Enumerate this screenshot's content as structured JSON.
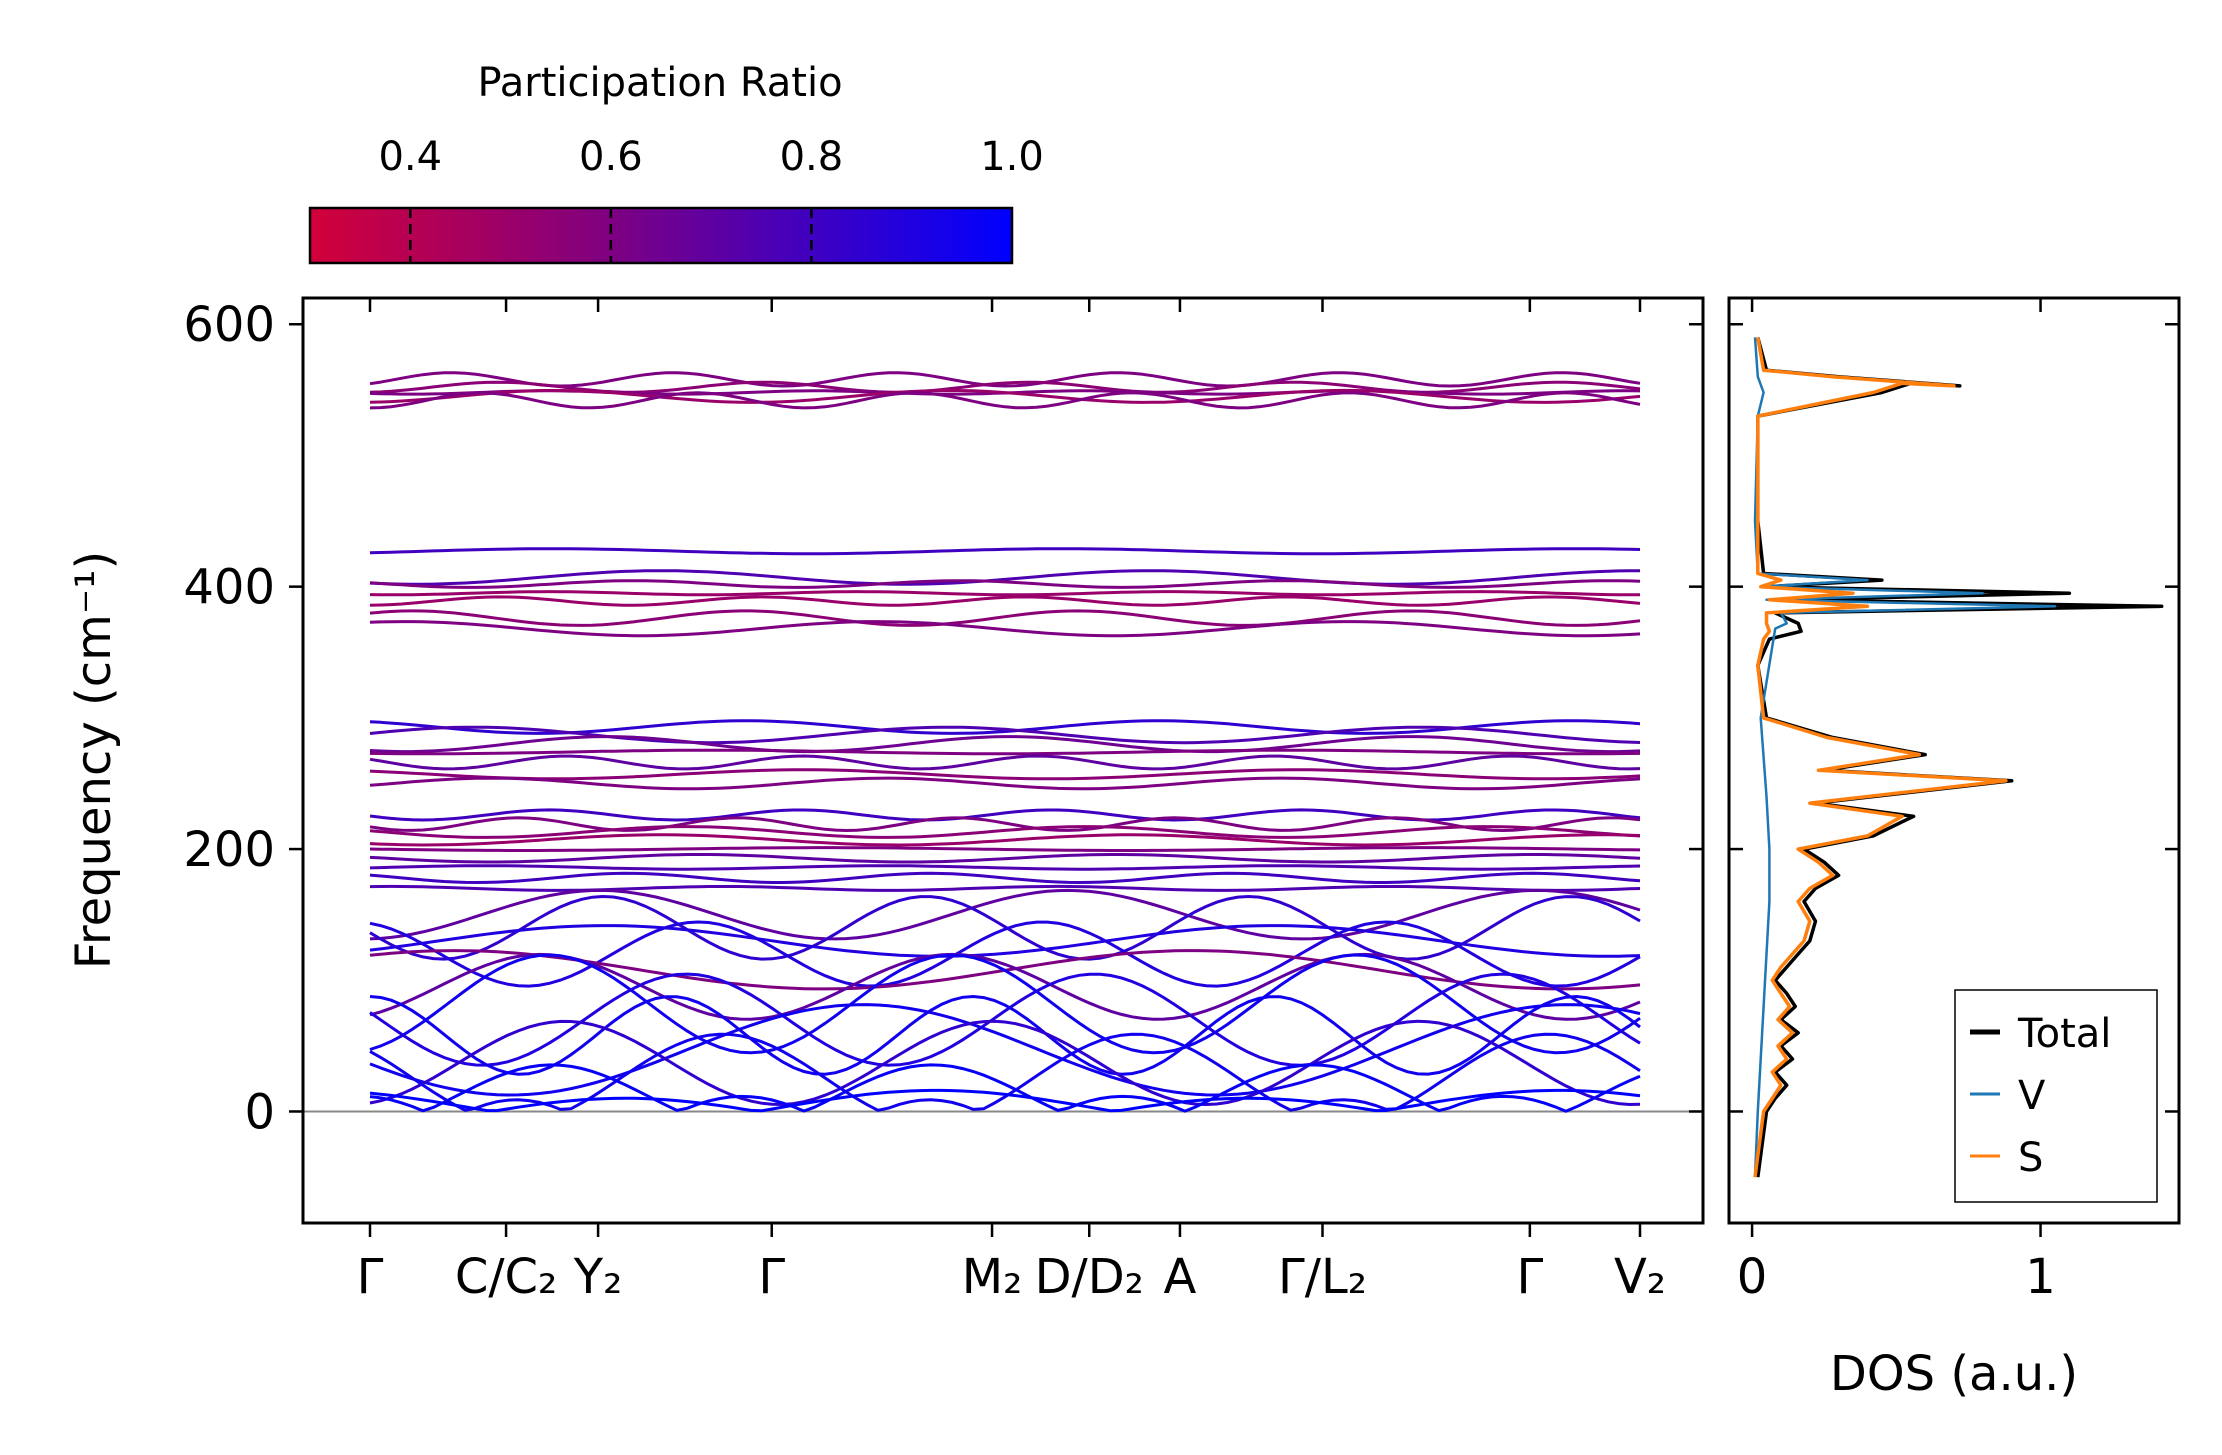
{
  "chart_data": [
    {
      "type": "line",
      "name": "phonon-band-structure",
      "ylabel": "Frequency (cm⁻¹)",
      "ylim": [
        -85,
        620
      ],
      "yticks": [
        0,
        200,
        400,
        600
      ],
      "kpath_labels": [
        "Γ",
        "C/C₂",
        "Y₂",
        "Γ",
        "M₂",
        "D/D₂",
        "A",
        "Γ/L₂",
        "Γ",
        "V₂"
      ],
      "kpath_positions": [
        0,
        0.105,
        0.176,
        0.31,
        0.48,
        0.555,
        0.625,
        0.735,
        0.895,
        0.98
      ],
      "zero_line": 0,
      "optical_bands": [
        {
          "freq": 558,
          "pr": 0.6
        },
        {
          "freq": 552,
          "pr": 0.55
        },
        {
          "freq": 548,
          "pr": 0.6
        },
        {
          "freq": 545,
          "pr": 0.5
        },
        {
          "freq": 542,
          "pr": 0.6
        },
        {
          "freq": 427,
          "pr": 0.8
        },
        {
          "freq": 407,
          "pr": 0.75
        },
        {
          "freq": 402,
          "pr": 0.6
        },
        {
          "freq": 395,
          "pr": 0.5
        },
        {
          "freq": 389,
          "pr": 0.5
        },
        {
          "freq": 376,
          "pr": 0.55
        },
        {
          "freq": 368,
          "pr": 0.6
        },
        {
          "freq": 293,
          "pr": 0.85
        },
        {
          "freq": 287,
          "pr": 0.75
        },
        {
          "freq": 280,
          "pr": 0.65
        },
        {
          "freq": 274,
          "pr": 0.6
        },
        {
          "freq": 266,
          "pr": 0.7
        },
        {
          "freq": 257,
          "pr": 0.55
        },
        {
          "freq": 250,
          "pr": 0.6
        },
        {
          "freq": 226,
          "pr": 0.8
        },
        {
          "freq": 219,
          "pr": 0.6
        },
        {
          "freq": 213,
          "pr": 0.55
        },
        {
          "freq": 207,
          "pr": 0.5
        },
        {
          "freq": 200,
          "pr": 0.6
        },
        {
          "freq": 193,
          "pr": 0.7
        },
        {
          "freq": 186,
          "pr": 0.75
        },
        {
          "freq": 178,
          "pr": 0.8
        },
        {
          "freq": 170,
          "pr": 0.75
        }
      ],
      "acoustic_bands": [
        {
          "freq": 150,
          "pr": 0.7
        },
        {
          "freq": 140,
          "pr": 0.85
        },
        {
          "freq": 130,
          "pr": 0.9
        },
        {
          "freq": 120,
          "pr": 0.9
        },
        {
          "freq": 108,
          "pr": 0.6
        },
        {
          "freq": 95,
          "pr": 0.7
        },
        {
          "freq": 82,
          "pr": 0.95
        },
        {
          "freq": 70,
          "pr": 0.9
        },
        {
          "freq": 58,
          "pr": 0.95
        },
        {
          "freq": 47,
          "pr": 0.95
        },
        {
          "freq": 37,
          "pr": 0.85
        },
        {
          "freq": 25,
          "pr": 0.95
        },
        {
          "freq": 12,
          "pr": 0.98
        },
        {
          "freq": 3,
          "pr": 1.0
        }
      ]
    },
    {
      "type": "line",
      "name": "colorbar",
      "title": "Participation Ratio",
      "range": [
        0.3,
        1.0
      ],
      "ticks": [
        "0.4",
        "0.6",
        "0.8",
        "1.0"
      ],
      "tick_values": [
        0.4,
        0.6,
        0.8,
        1.0
      ],
      "color_low": "#d2003a",
      "color_mid": "#800080",
      "color_high": "#0000ff"
    },
    {
      "type": "line",
      "name": "density-of-states",
      "xlabel": "DOS (a.u.)",
      "xlim": [
        -0.08,
        1.48
      ],
      "xticks": [
        "0",
        "1"
      ],
      "xtick_values": [
        0,
        1
      ],
      "ylim": [
        -85,
        620
      ],
      "legend_position": "bottom-right",
      "series": [
        {
          "name": "Total",
          "color": "#000000",
          "points": [
            [
              0.02,
              -50
            ],
            [
              0.05,
              0
            ],
            [
              0.08,
              10
            ],
            [
              0.12,
              20
            ],
            [
              0.08,
              30
            ],
            [
              0.14,
              40
            ],
            [
              0.1,
              50
            ],
            [
              0.16,
              60
            ],
            [
              0.1,
              70
            ],
            [
              0.15,
              80
            ],
            [
              0.12,
              90
            ],
            [
              0.08,
              100
            ],
            [
              0.12,
              110
            ],
            [
              0.16,
              120
            ],
            [
              0.2,
              130
            ],
            [
              0.22,
              145
            ],
            [
              0.18,
              160
            ],
            [
              0.22,
              170
            ],
            [
              0.3,
              180
            ],
            [
              0.25,
              190
            ],
            [
              0.18,
              200
            ],
            [
              0.42,
              210
            ],
            [
              0.56,
              225
            ],
            [
              0.22,
              235
            ],
            [
              0.9,
              252
            ],
            [
              0.25,
              260
            ],
            [
              0.6,
              272
            ],
            [
              0.28,
              285
            ],
            [
              0.05,
              300
            ],
            [
              0.02,
              340
            ],
            [
              0.06,
              360
            ],
            [
              0.17,
              366
            ],
            [
              0.16,
              372
            ],
            [
              0.08,
              380
            ],
            [
              1.42,
              385
            ],
            [
              0.1,
              390
            ],
            [
              1.1,
              395
            ],
            [
              0.05,
              400
            ],
            [
              0.45,
              405
            ],
            [
              0.04,
              410
            ],
            [
              0.02,
              450
            ],
            [
              0.02,
              530
            ],
            [
              0.45,
              548
            ],
            [
              0.55,
              555
            ],
            [
              0.72,
              553
            ],
            [
              0.3,
              560
            ],
            [
              0.05,
              565
            ],
            [
              0.02,
              590
            ]
          ]
        },
        {
          "name": "V",
          "color": "#1f77b4",
          "points": [
            [
              0.01,
              -50
            ],
            [
              0.02,
              0
            ],
            [
              0.03,
              40
            ],
            [
              0.04,
              80
            ],
            [
              0.05,
              120
            ],
            [
              0.06,
              160
            ],
            [
              0.06,
              200
            ],
            [
              0.05,
              240
            ],
            [
              0.03,
              300
            ],
            [
              0.08,
              368
            ],
            [
              0.12,
              372
            ],
            [
              0.1,
              380
            ],
            [
              1.05,
              385
            ],
            [
              0.05,
              390
            ],
            [
              0.8,
              395
            ],
            [
              0.03,
              400
            ],
            [
              0.4,
              405
            ],
            [
              0.02,
              410
            ],
            [
              0.01,
              450
            ],
            [
              0.02,
              530
            ],
            [
              0.04,
              548
            ],
            [
              0.02,
              560
            ],
            [
              0.01,
              590
            ]
          ]
        },
        {
          "name": "S",
          "color": "#ff7f0e",
          "points": [
            [
              0.01,
              -50
            ],
            [
              0.04,
              0
            ],
            [
              0.07,
              10
            ],
            [
              0.1,
              20
            ],
            [
              0.07,
              30
            ],
            [
              0.12,
              40
            ],
            [
              0.09,
              50
            ],
            [
              0.14,
              60
            ],
            [
              0.09,
              70
            ],
            [
              0.13,
              80
            ],
            [
              0.1,
              90
            ],
            [
              0.07,
              100
            ],
            [
              0.1,
              110
            ],
            [
              0.14,
              120
            ],
            [
              0.18,
              130
            ],
            [
              0.2,
              145
            ],
            [
              0.16,
              160
            ],
            [
              0.2,
              170
            ],
            [
              0.28,
              180
            ],
            [
              0.23,
              190
            ],
            [
              0.16,
              200
            ],
            [
              0.4,
              210
            ],
            [
              0.52,
              225
            ],
            [
              0.2,
              235
            ],
            [
              0.88,
              252
            ],
            [
              0.23,
              260
            ],
            [
              0.58,
              272
            ],
            [
              0.26,
              285
            ],
            [
              0.04,
              300
            ],
            [
              0.02,
              340
            ],
            [
              0.04,
              360
            ],
            [
              0.06,
              366
            ],
            [
              0.05,
              372
            ],
            [
              0.05,
              380
            ],
            [
              0.4,
              385
            ],
            [
              0.06,
              390
            ],
            [
              0.35,
              395
            ],
            [
              0.03,
              400
            ],
            [
              0.1,
              405
            ],
            [
              0.02,
              410
            ],
            [
              0.02,
              450
            ],
            [
              0.02,
              530
            ],
            [
              0.42,
              548
            ],
            [
              0.52,
              555
            ],
            [
              0.7,
              553
            ],
            [
              0.28,
              560
            ],
            [
              0.04,
              565
            ],
            [
              0.02,
              590
            ]
          ]
        }
      ]
    }
  ]
}
